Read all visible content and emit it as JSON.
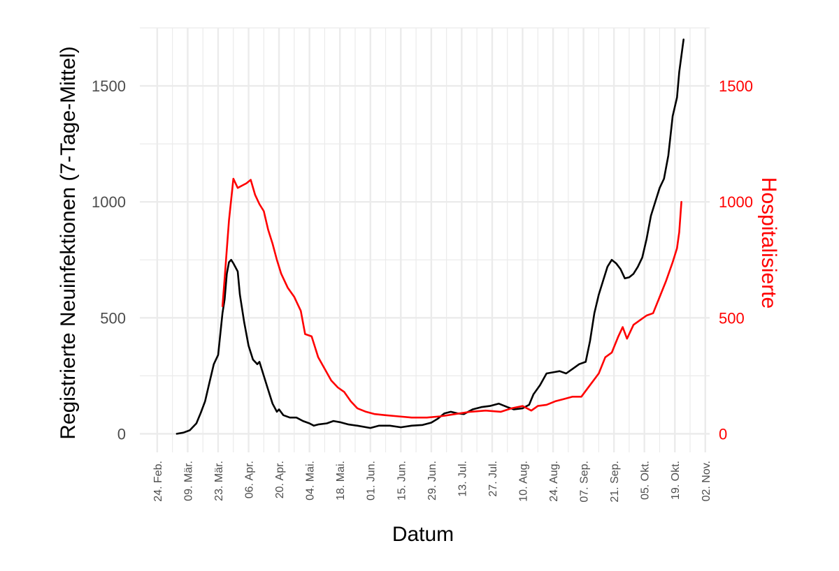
{
  "chart_data": {
    "type": "line",
    "xlabel": "Datum",
    "ylabel": "Registrierte Neuinfektionen (7-Tage-Mittel)",
    "y2label": "Hospitalisierte",
    "ylim": [
      -80,
      1750
    ],
    "y2lim": [
      -80,
      1750
    ],
    "yticks": [
      0,
      500,
      1000,
      1500
    ],
    "y2ticks": [
      0,
      500,
      1000,
      1500
    ],
    "xlim": [
      "2020-02-16",
      "2020-11-04"
    ],
    "xticks": [
      {
        "date": "2020-02-24",
        "label": "24. Feb."
      },
      {
        "date": "2020-03-09",
        "label": "09. Mär."
      },
      {
        "date": "2020-03-23",
        "label": "23. Mär."
      },
      {
        "date": "2020-04-06",
        "label": "06. Apr."
      },
      {
        "date": "2020-04-20",
        "label": "20. Apr."
      },
      {
        "date": "2020-05-04",
        "label": "04. Mai."
      },
      {
        "date": "2020-05-18",
        "label": "18. Mai."
      },
      {
        "date": "2020-06-01",
        "label": "01. Jun."
      },
      {
        "date": "2020-06-15",
        "label": "15. Jun."
      },
      {
        "date": "2020-06-29",
        "label": "29. Jun."
      },
      {
        "date": "2020-07-13",
        "label": "13. Jul."
      },
      {
        "date": "2020-07-27",
        "label": "27. Jul."
      },
      {
        "date": "2020-08-10",
        "label": "10. Aug."
      },
      {
        "date": "2020-08-24",
        "label": "24. Aug."
      },
      {
        "date": "2020-09-07",
        "label": "07. Sep."
      },
      {
        "date": "2020-09-21",
        "label": "21. Sep."
      },
      {
        "date": "2020-10-05",
        "label": "05. Okt."
      },
      {
        "date": "2020-10-19",
        "label": "19. Okt."
      },
      {
        "date": "2020-11-02",
        "label": "02. Nov."
      }
    ],
    "grid": true,
    "series": [
      {
        "axis": "left",
        "color": "#000000",
        "points": [
          [
            "2020-03-04",
            0
          ],
          [
            "2020-03-07",
            5
          ],
          [
            "2020-03-10",
            15
          ],
          [
            "2020-03-13",
            45
          ],
          [
            "2020-03-15",
            90
          ],
          [
            "2020-03-17",
            140
          ],
          [
            "2020-03-19",
            220
          ],
          [
            "2020-03-21",
            300
          ],
          [
            "2020-03-23",
            340
          ],
          [
            "2020-03-25",
            520
          ],
          [
            "2020-03-26",
            580
          ],
          [
            "2020-03-27",
            690
          ],
          [
            "2020-03-28",
            740
          ],
          [
            "2020-03-29",
            750
          ],
          [
            "2020-03-30",
            735
          ],
          [
            "2020-04-01",
            700
          ],
          [
            "2020-04-02",
            600
          ],
          [
            "2020-04-04",
            480
          ],
          [
            "2020-04-06",
            380
          ],
          [
            "2020-04-08",
            320
          ],
          [
            "2020-04-10",
            300
          ],
          [
            "2020-04-11",
            310
          ],
          [
            "2020-04-13",
            250
          ],
          [
            "2020-04-15",
            190
          ],
          [
            "2020-04-17",
            130
          ],
          [
            "2020-04-19",
            95
          ],
          [
            "2020-04-20",
            105
          ],
          [
            "2020-04-22",
            80
          ],
          [
            "2020-04-25",
            70
          ],
          [
            "2020-04-28",
            70
          ],
          [
            "2020-05-01",
            55
          ],
          [
            "2020-05-04",
            45
          ],
          [
            "2020-05-06",
            35
          ],
          [
            "2020-05-08",
            40
          ],
          [
            "2020-05-12",
            45
          ],
          [
            "2020-05-15",
            55
          ],
          [
            "2020-05-18",
            50
          ],
          [
            "2020-05-22",
            40
          ],
          [
            "2020-05-26",
            35
          ],
          [
            "2020-06-01",
            25
          ],
          [
            "2020-06-05",
            35
          ],
          [
            "2020-06-10",
            35
          ],
          [
            "2020-06-15",
            28
          ],
          [
            "2020-06-20",
            35
          ],
          [
            "2020-06-25",
            38
          ],
          [
            "2020-06-29",
            48
          ],
          [
            "2020-07-02",
            65
          ],
          [
            "2020-07-05",
            88
          ],
          [
            "2020-07-08",
            95
          ],
          [
            "2020-07-11",
            88
          ],
          [
            "2020-07-14",
            85
          ],
          [
            "2020-07-18",
            105
          ],
          [
            "2020-07-22",
            115
          ],
          [
            "2020-07-26",
            120
          ],
          [
            "2020-07-30",
            130
          ],
          [
            "2020-08-03",
            115
          ],
          [
            "2020-08-06",
            105
          ],
          [
            "2020-08-10",
            110
          ],
          [
            "2020-08-13",
            125
          ],
          [
            "2020-08-15",
            170
          ],
          [
            "2020-08-18",
            210
          ],
          [
            "2020-08-21",
            260
          ],
          [
            "2020-08-24",
            265
          ],
          [
            "2020-08-27",
            270
          ],
          [
            "2020-08-30",
            260
          ],
          [
            "2020-09-02",
            280
          ],
          [
            "2020-09-05",
            300
          ],
          [
            "2020-09-08",
            310
          ],
          [
            "2020-09-10",
            400
          ],
          [
            "2020-09-12",
            520
          ],
          [
            "2020-09-14",
            600
          ],
          [
            "2020-09-16",
            660
          ],
          [
            "2020-09-18",
            720
          ],
          [
            "2020-09-20",
            750
          ],
          [
            "2020-09-22",
            735
          ],
          [
            "2020-09-24",
            710
          ],
          [
            "2020-09-26",
            670
          ],
          [
            "2020-09-28",
            675
          ],
          [
            "2020-09-30",
            690
          ],
          [
            "2020-10-02",
            720
          ],
          [
            "2020-10-04",
            760
          ],
          [
            "2020-10-06",
            840
          ],
          [
            "2020-10-08",
            940
          ],
          [
            "2020-10-10",
            1000
          ],
          [
            "2020-10-12",
            1060
          ],
          [
            "2020-10-14",
            1100
          ],
          [
            "2020-10-16",
            1200
          ],
          [
            "2020-10-18",
            1370
          ],
          [
            "2020-10-20",
            1450
          ],
          [
            "2020-10-21",
            1560
          ],
          [
            "2020-10-23",
            1700
          ]
        ]
      },
      {
        "axis": "right",
        "color": "#ff0000",
        "points": [
          [
            "2020-03-25",
            550
          ],
          [
            "2020-03-26",
            670
          ],
          [
            "2020-03-28",
            920
          ],
          [
            "2020-03-30",
            1100
          ],
          [
            "2020-04-01",
            1060
          ],
          [
            "2020-04-03",
            1070
          ],
          [
            "2020-04-05",
            1080
          ],
          [
            "2020-04-07",
            1095
          ],
          [
            "2020-04-09",
            1030
          ],
          [
            "2020-04-11",
            990
          ],
          [
            "2020-04-13",
            960
          ],
          [
            "2020-04-15",
            880
          ],
          [
            "2020-04-17",
            820
          ],
          [
            "2020-04-19",
            750
          ],
          [
            "2020-04-21",
            690
          ],
          [
            "2020-04-24",
            630
          ],
          [
            "2020-04-27",
            590
          ],
          [
            "2020-04-30",
            530
          ],
          [
            "2020-05-02",
            430
          ],
          [
            "2020-05-05",
            420
          ],
          [
            "2020-05-08",
            330
          ],
          [
            "2020-05-11",
            280
          ],
          [
            "2020-05-14",
            230
          ],
          [
            "2020-05-17",
            200
          ],
          [
            "2020-05-20",
            180
          ],
          [
            "2020-05-23",
            140
          ],
          [
            "2020-05-26",
            110
          ],
          [
            "2020-05-30",
            95
          ],
          [
            "2020-06-03",
            85
          ],
          [
            "2020-06-08",
            80
          ],
          [
            "2020-06-14",
            75
          ],
          [
            "2020-06-20",
            70
          ],
          [
            "2020-06-27",
            70
          ],
          [
            "2020-07-03",
            75
          ],
          [
            "2020-07-10",
            85
          ],
          [
            "2020-07-17",
            95
          ],
          [
            "2020-07-24",
            100
          ],
          [
            "2020-07-31",
            95
          ],
          [
            "2020-08-05",
            110
          ],
          [
            "2020-08-10",
            120
          ],
          [
            "2020-08-14",
            100
          ],
          [
            "2020-08-17",
            120
          ],
          [
            "2020-08-21",
            125
          ],
          [
            "2020-08-25",
            140
          ],
          [
            "2020-08-29",
            150
          ],
          [
            "2020-09-02",
            160
          ],
          [
            "2020-09-06",
            160
          ],
          [
            "2020-09-10",
            210
          ],
          [
            "2020-09-14",
            260
          ],
          [
            "2020-09-17",
            330
          ],
          [
            "2020-09-20",
            350
          ],
          [
            "2020-09-23",
            420
          ],
          [
            "2020-09-25",
            460
          ],
          [
            "2020-09-27",
            410
          ],
          [
            "2020-09-30",
            470
          ],
          [
            "2020-10-03",
            490
          ],
          [
            "2020-10-06",
            510
          ],
          [
            "2020-10-09",
            520
          ],
          [
            "2020-10-12",
            590
          ],
          [
            "2020-10-15",
            660
          ],
          [
            "2020-10-18",
            740
          ],
          [
            "2020-10-20",
            800
          ],
          [
            "2020-10-21",
            870
          ],
          [
            "2020-10-22",
            1000
          ]
        ]
      }
    ]
  }
}
